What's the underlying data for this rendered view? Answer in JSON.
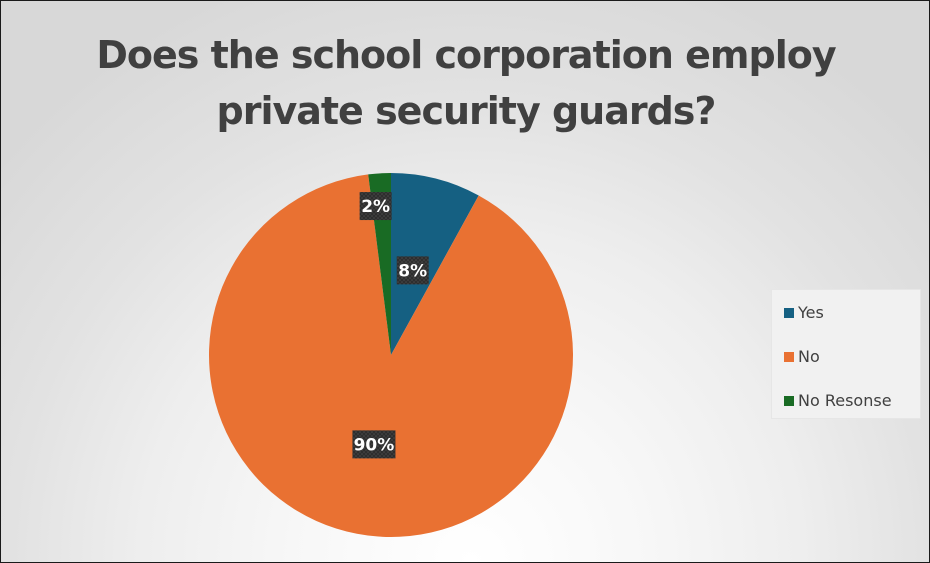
{
  "chart_data": {
    "type": "pie",
    "title": "Does the school corporation employ private security guards?",
    "title_lines": [
      "Does the school corporation employ",
      "private security guards?"
    ],
    "categories": [
      "Yes",
      "No",
      "No Resonse"
    ],
    "values": [
      8,
      90,
      2
    ],
    "value_labels": [
      "8%",
      "90%",
      "2%"
    ],
    "colors": [
      "#156082",
      "#E97132",
      "#196B24"
    ],
    "legend": {
      "position": "right",
      "entries": [
        "Yes",
        "No",
        "No Resonse"
      ]
    }
  }
}
